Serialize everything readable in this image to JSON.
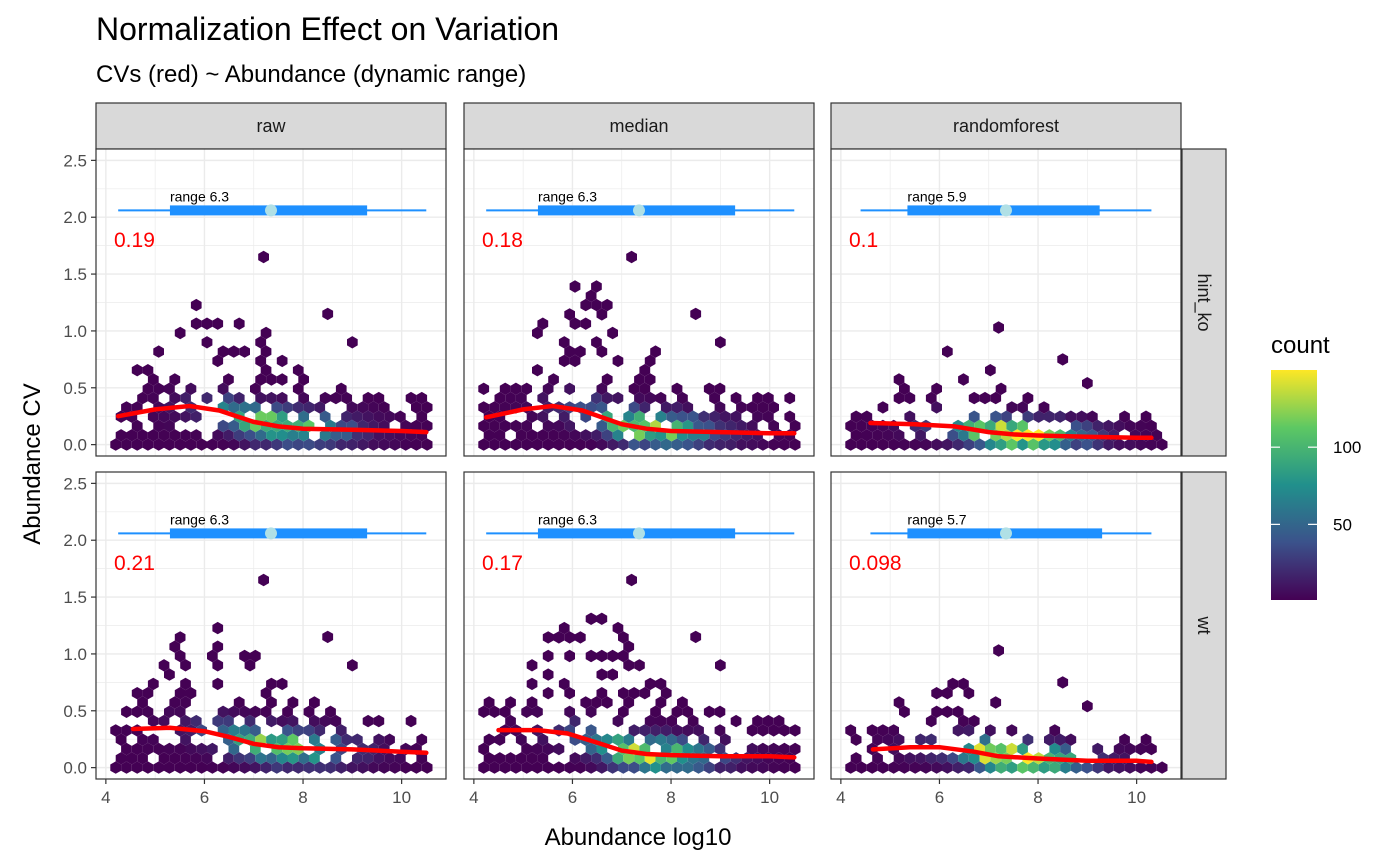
{
  "chart_data": {
    "type": "hexbin",
    "title": "Normalization Effect on Variation",
    "subtitle": "CVs (red) ~ Abundance (dynamic range)",
    "xlabel": "Abundance log10",
    "ylabel": "Abundance CV",
    "xlim": [
      3.8,
      10.9
    ],
    "ylim": [
      -0.1,
      2.6
    ],
    "x_ticks": [
      4,
      6,
      8,
      10
    ],
    "y_ticks": [
      0.0,
      0.5,
      1.0,
      1.5,
      2.0,
      2.5
    ],
    "y_tick_labels": [
      "0.0",
      "0.5",
      "1.0",
      "1.5",
      "2.0",
      "2.5"
    ],
    "columns": [
      "raw",
      "median",
      "randomforest"
    ],
    "rows": [
      "hint_ko",
      "wt"
    ],
    "legend": {
      "title": "count",
      "ticks": [
        50,
        100
      ],
      "min": 1,
      "max": 150,
      "palette": [
        "#440154",
        "#3b528b",
        "#21908c",
        "#5dc863",
        "#fde725"
      ],
      "position": "right"
    },
    "colors": {
      "cv_line": "#ff0000",
      "range_bar": "#1e90ff",
      "range_point": "#b0e0e6",
      "strip_bg": "#d9d9d9",
      "grid": "#ebebeb"
    },
    "panels": [
      {
        "col": "raw",
        "row": "hint_ko",
        "median_cv": "0.19",
        "range_text": "range 6.3",
        "range": {
          "min": 4.25,
          "q1": 5.3,
          "median": 7.35,
          "q3": 9.3,
          "max": 10.5,
          "y": 2.06
        },
        "trend": [
          [
            4.25,
            0.25
          ],
          [
            5,
            0.31
          ],
          [
            5.7,
            0.34
          ],
          [
            6.3,
            0.3
          ],
          [
            7,
            0.2
          ],
          [
            7.5,
            0.16
          ],
          [
            8,
            0.14
          ],
          [
            9,
            0.13
          ],
          [
            10,
            0.12
          ],
          [
            10.5,
            0.11
          ]
        ],
        "spread": 1.0
      },
      {
        "col": "median",
        "row": "hint_ko",
        "median_cv": "0.18",
        "range_text": "range 6.3",
        "range": {
          "min": 4.25,
          "q1": 5.3,
          "median": 7.35,
          "q3": 9.3,
          "max": 10.5,
          "y": 2.06
        },
        "trend": [
          [
            4.25,
            0.24
          ],
          [
            5,
            0.31
          ],
          [
            5.6,
            0.34
          ],
          [
            6.2,
            0.3
          ],
          [
            7,
            0.18
          ],
          [
            7.5,
            0.14
          ],
          [
            8,
            0.12
          ],
          [
            9,
            0.11
          ],
          [
            10,
            0.1
          ],
          [
            10.5,
            0.1
          ]
        ],
        "spread": 1.0
      },
      {
        "col": "randomforest",
        "row": "hint_ko",
        "median_cv": "0.1",
        "range_text": "range 5.9",
        "range": {
          "min": 4.4,
          "q1": 5.35,
          "median": 7.35,
          "q3": 9.25,
          "max": 10.3,
          "y": 2.06
        },
        "trend": [
          [
            4.6,
            0.19
          ],
          [
            5.5,
            0.18
          ],
          [
            6.3,
            0.16
          ],
          [
            7,
            0.11
          ],
          [
            7.5,
            0.09
          ],
          [
            8,
            0.08
          ],
          [
            9,
            0.07
          ],
          [
            10,
            0.06
          ],
          [
            10.3,
            0.06
          ]
        ],
        "spread": 0.6
      },
      {
        "col": "raw",
        "row": "wt",
        "median_cv": "0.21",
        "range_text": "range 6.3",
        "range": {
          "min": 4.25,
          "q1": 5.3,
          "median": 7.35,
          "q3": 9.3,
          "max": 10.5,
          "y": 2.06
        },
        "trend": [
          [
            4.55,
            0.34
          ],
          [
            5.3,
            0.35
          ],
          [
            6,
            0.32
          ],
          [
            6.5,
            0.27
          ],
          [
            7,
            0.21
          ],
          [
            7.5,
            0.18
          ],
          [
            8,
            0.17
          ],
          [
            9,
            0.16
          ],
          [
            10,
            0.14
          ],
          [
            10.5,
            0.13
          ]
        ],
        "spread": 1.0
      },
      {
        "col": "median",
        "row": "wt",
        "median_cv": "0.17",
        "range_text": "range 6.3",
        "range": {
          "min": 4.25,
          "q1": 5.3,
          "median": 7.35,
          "q3": 9.3,
          "max": 10.5,
          "y": 2.06
        },
        "trend": [
          [
            4.5,
            0.33
          ],
          [
            5.3,
            0.33
          ],
          [
            5.9,
            0.3
          ],
          [
            6.5,
            0.22
          ],
          [
            7,
            0.15
          ],
          [
            7.5,
            0.12
          ],
          [
            8,
            0.11
          ],
          [
            9,
            0.1
          ],
          [
            10,
            0.1
          ],
          [
            10.5,
            0.09
          ]
        ],
        "spread": 1.0
      },
      {
        "col": "randomforest",
        "row": "wt",
        "median_cv": "0.098",
        "range_text": "range 5.7",
        "range": {
          "min": 4.6,
          "q1": 5.35,
          "median": 7.35,
          "q3": 9.3,
          "max": 10.3,
          "y": 2.06
        },
        "trend": [
          [
            4.65,
            0.16
          ],
          [
            5.4,
            0.18
          ],
          [
            6,
            0.18
          ],
          [
            6.7,
            0.14
          ],
          [
            7.2,
            0.1
          ],
          [
            8,
            0.08
          ],
          [
            9,
            0.06
          ],
          [
            10,
            0.06
          ],
          [
            10.3,
            0.05
          ]
        ],
        "spread": 0.6
      }
    ]
  }
}
